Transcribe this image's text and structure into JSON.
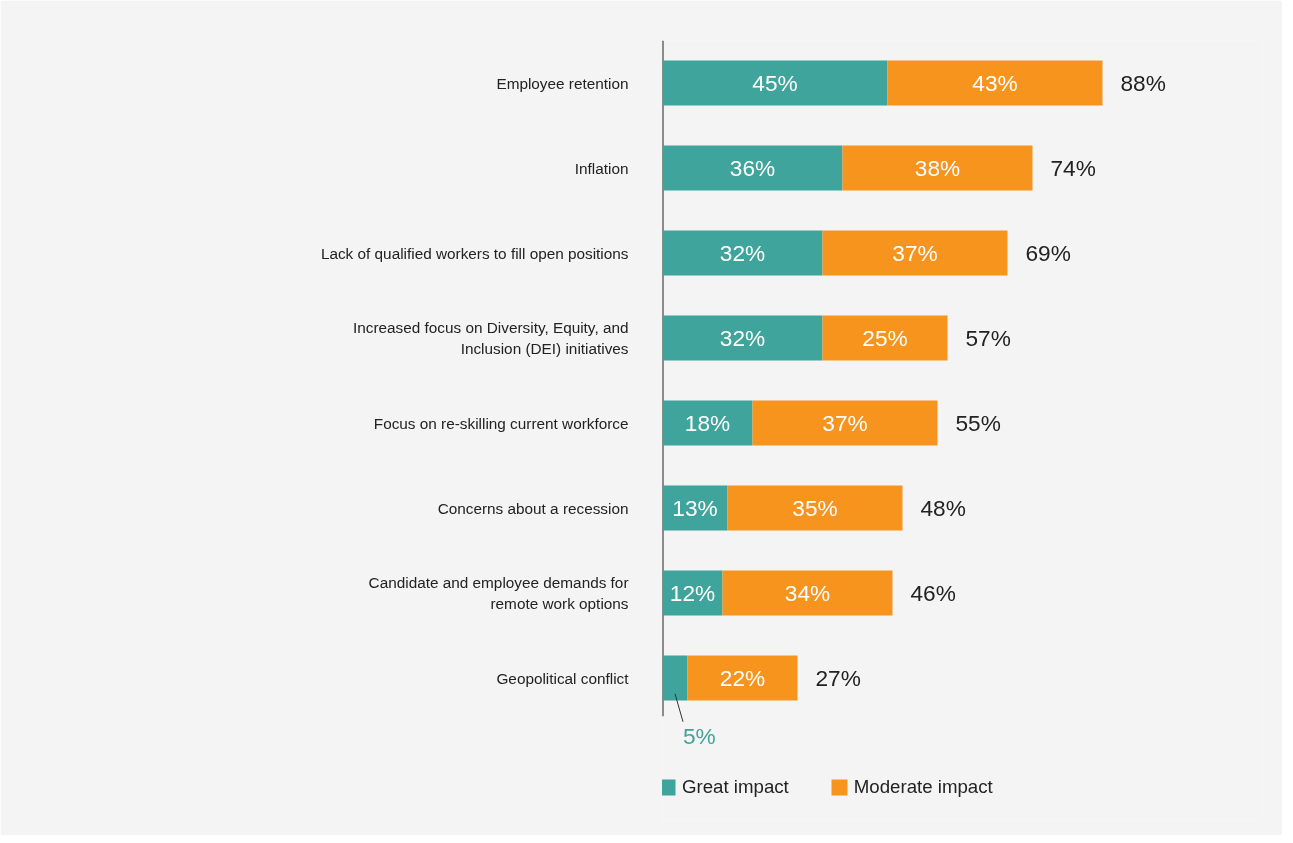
{
  "chart_data": {
    "type": "bar",
    "orientation": "horizontal",
    "stacked": true,
    "categories": [
      "Employee retention",
      "Inflation",
      "Lack of qualified workers to fill open positions",
      "Increased focus on Diversity, Equity, and\nInclusion (DEI) initiatives",
      "Focus on re-skilling current workforce",
      "Concerns about a recession",
      "Candidate and employee demands for\nremote work options",
      "Geopolitical conflict"
    ],
    "series": [
      {
        "name": "Great impact",
        "color": "#3fa49c",
        "values": [
          45,
          36,
          32,
          32,
          18,
          13,
          12,
          5
        ],
        "value_labels": [
          "45%",
          "36%",
          "32%",
          "32%",
          "18%",
          "13%",
          "12%",
          "5%"
        ]
      },
      {
        "name": "Moderate impact",
        "color": "#f7941e",
        "values": [
          43,
          38,
          37,
          25,
          37,
          35,
          34,
          22
        ],
        "value_labels": [
          "43%",
          "38%",
          "37%",
          "25%",
          "37%",
          "35%",
          "34%",
          "22%"
        ]
      }
    ],
    "totals": [
      "88%",
      "74%",
      "69%",
      "57%",
      "55%",
      "48%",
      "46%",
      "27%"
    ],
    "xlim": [
      0,
      120
    ],
    "tick_labels": "y",
    "grid": false,
    "legend": "bottom"
  }
}
